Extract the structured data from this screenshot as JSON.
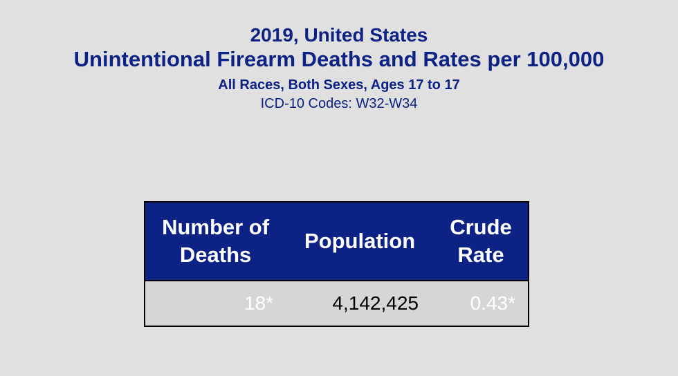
{
  "header": {
    "line1": "2019, United States",
    "line2": "Unintentional Firearm Deaths and Rates per 100,000",
    "line3": "All Races, Both Sexes, Ages 17 to 17",
    "line4": "ICD-10 Codes: W32-W34"
  },
  "table": {
    "headers": {
      "deaths_line1": "Number of",
      "deaths_line2": "Deaths",
      "population": "Population",
      "rate_line1": "Crude",
      "rate_line2": "Rate"
    },
    "row": {
      "deaths": "18*",
      "population": "4,142,425",
      "rate": "0.43*"
    }
  },
  "colors": {
    "title_text": "#0c2284",
    "header_bg": "#0c2284",
    "header_text": "#ffffff",
    "row_bg": "#d6d6d6",
    "page_bg": "#e0e0e0",
    "flagged_value_text": "#ffffff"
  }
}
